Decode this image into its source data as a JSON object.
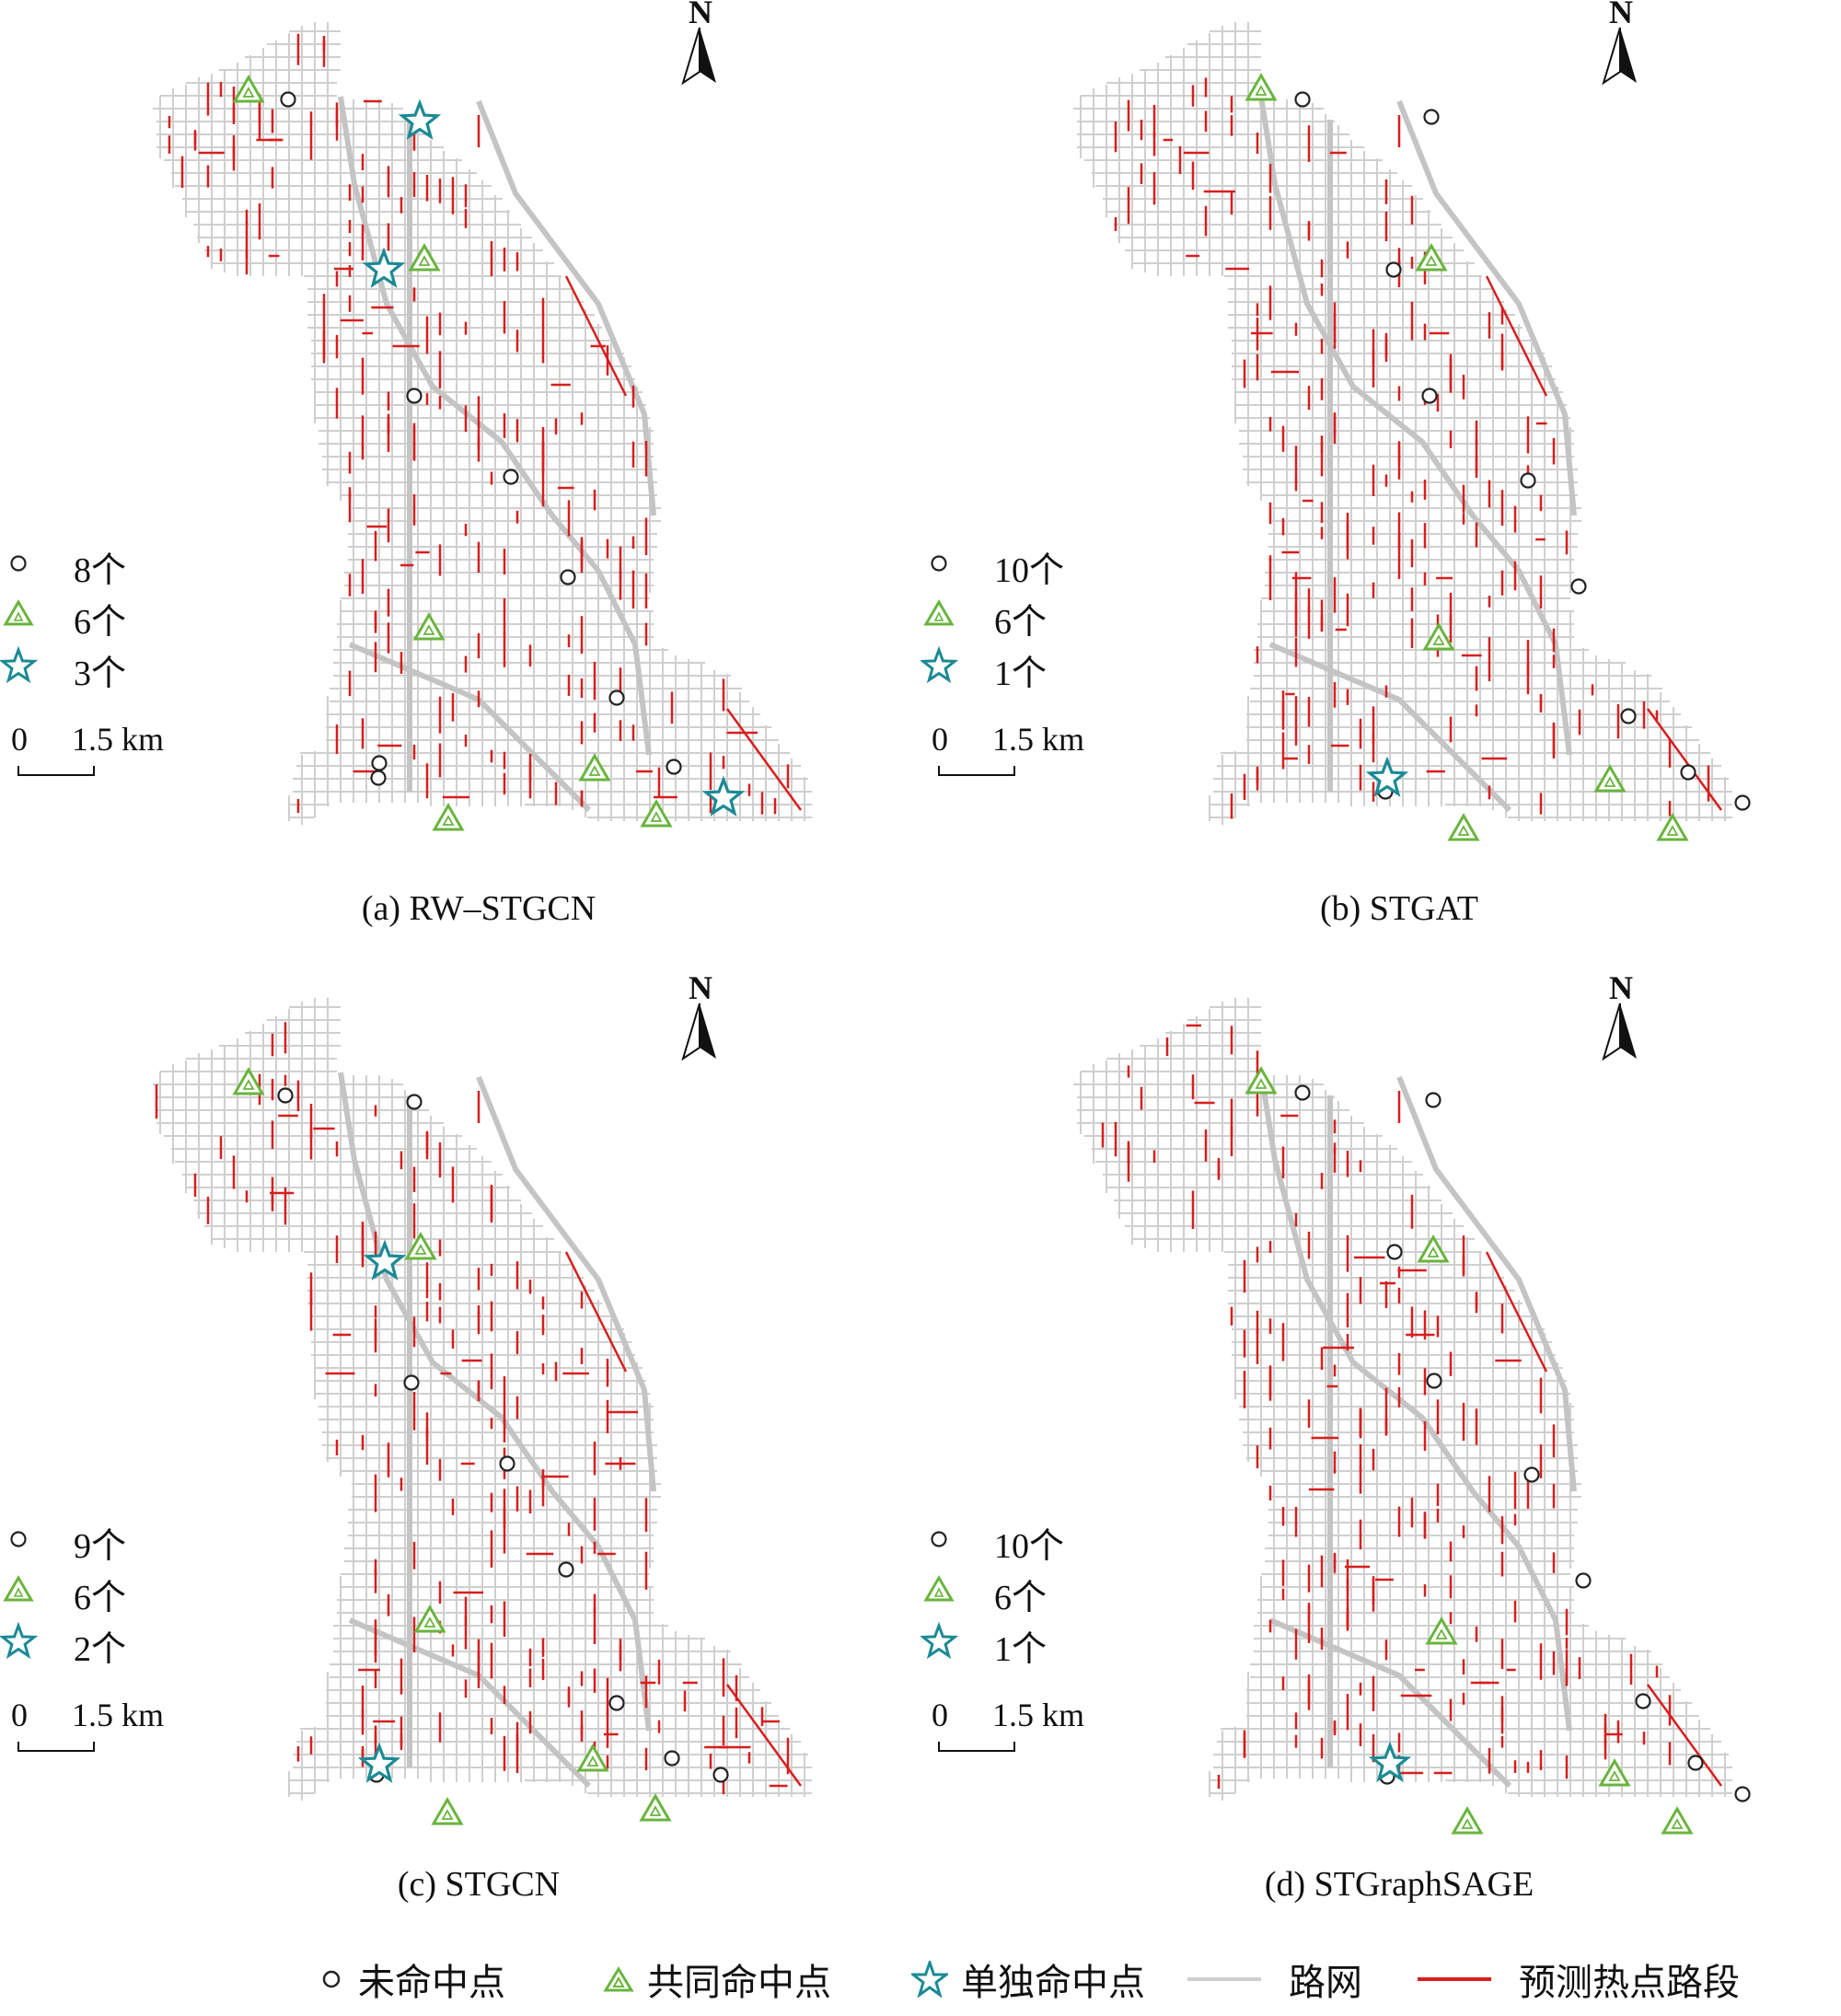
{
  "panels": [
    {
      "caption": "(a) RW–STGCN",
      "legend": [
        "8个",
        "6个",
        "3个"
      ],
      "has_star": true
    },
    {
      "caption": "(b) STGAT",
      "legend": [
        "10个",
        "6个",
        "1个"
      ],
      "has_star": true
    },
    {
      "caption": "(c) STGCN",
      "legend": [
        "9个",
        "6个",
        "2个"
      ],
      "has_star": true
    },
    {
      "caption": "(d) STGraphSAGE",
      "legend": [
        "10个",
        "6个",
        "1个"
      ],
      "has_star": true
    }
  ],
  "north_label": "N",
  "scale": {
    "zero": "0",
    "distance": "1.5 km"
  },
  "bottom_legend": {
    "miss": "未命中点",
    "common_hit": "共同命中点",
    "single_hit": "单独命中点",
    "road": "路网",
    "hotspot": "预测热点路段"
  },
  "colors": {
    "road": "#cfcfcf",
    "hotspot": "#d81e1e",
    "triangle": "#6ab43e",
    "star": "#1b8a94",
    "circle": "#222222"
  }
}
